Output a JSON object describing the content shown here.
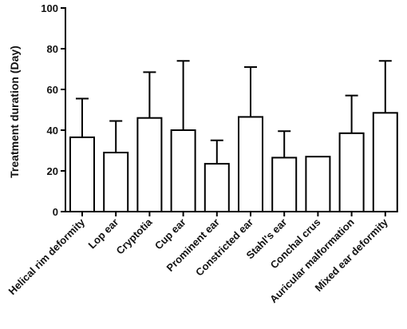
{
  "chart_data": {
    "type": "bar",
    "title": "",
    "xlabel": "",
    "ylabel": "Treatment duration (Day)",
    "ylim": [
      0,
      100
    ],
    "yticks": [
      0,
      20,
      40,
      60,
      80,
      100
    ],
    "grid": false,
    "categories": [
      "Helical rim deformity",
      "Lop ear",
      "Cryptotia",
      "Cup ear",
      "Prominent ear",
      "Constricted ear",
      "Stahl's ear",
      "Conchal crus",
      "Auricular malformation",
      "Mixed ear deformity"
    ],
    "series": [
      {
        "values": [
          36.5,
          29,
          46,
          40,
          23.5,
          46.5,
          26.5,
          27,
          38.5,
          48.5
        ],
        "error_upper": [
          19,
          15.5,
          22.5,
          34,
          11.5,
          24.5,
          13,
          0,
          18.5,
          25.5
        ]
      }
    ],
    "colors": {
      "bar_fill": "#ffffff",
      "stroke": "#000000"
    }
  }
}
